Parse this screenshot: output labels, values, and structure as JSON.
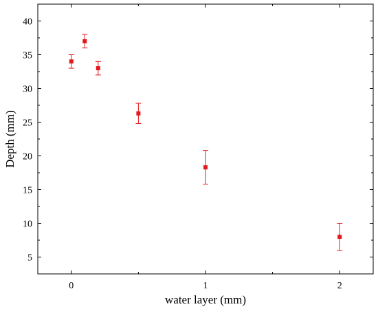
{
  "chart_data": {
    "type": "scatter",
    "xlabel": "water layer (mm)",
    "ylabel": "Depth (mm)",
    "xlim": [
      -0.25,
      2.25
    ],
    "ylim": [
      2.5,
      42.5
    ],
    "xticks": [
      0,
      1,
      2
    ],
    "yticks": [
      5,
      10,
      15,
      20,
      25,
      30,
      35,
      40
    ],
    "grid": false,
    "marker_color": "#e31a1c",
    "series": [
      {
        "points": [
          {
            "x": 0.0,
            "y": 34.0,
            "err": 1.0
          },
          {
            "x": 0.1,
            "y": 37.0,
            "err": 1.0
          },
          {
            "x": 0.2,
            "y": 33.0,
            "err": 1.0
          },
          {
            "x": 0.5,
            "y": 26.3,
            "err": 1.5
          },
          {
            "x": 1.0,
            "y": 18.3,
            "err": 2.5
          },
          {
            "x": 2.0,
            "y": 8.0,
            "err": 2.0
          }
        ]
      }
    ]
  }
}
